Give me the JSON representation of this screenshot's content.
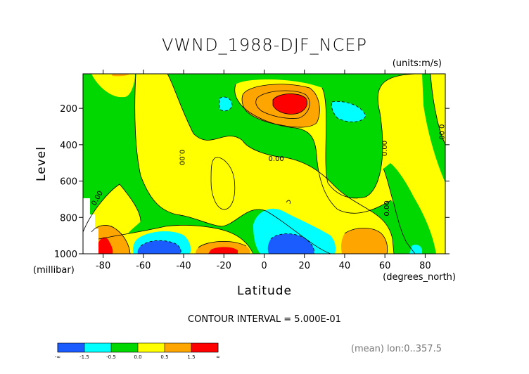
{
  "title": "VWND_1988-DJF_NCEP",
  "units": "(units:m/s)",
  "contour_interval": "CONTOUR INTERVAL = 5.000E-01",
  "footer": "(mean) lon:0..357.5",
  "colors": {
    "deep_blue": "#1a5cff",
    "cyan": "#00ffff",
    "green": "#00d800",
    "yellow": "#ffff00",
    "orange": "#ffa500",
    "red": "#ff0000"
  },
  "chart_data": {
    "type": "heatmap",
    "title": "VWND_1988-DJF_NCEP",
    "xlabel": "Latitude",
    "xunit": "(degrees_north)",
    "ylabel": "Level",
    "yunit": "(millibar)",
    "xlim": [
      -90,
      90
    ],
    "ylim": [
      1000,
      10
    ],
    "xticks": [
      -80,
      -60,
      -40,
      -20,
      0,
      20,
      40,
      60,
      80
    ],
    "yticks": [
      200,
      400,
      600,
      800,
      1000
    ],
    "contour_labels": [
      {
        "text": "0.00",
        "lat": -82,
        "level": 700
      },
      {
        "text": "0.00",
        "lat": -42,
        "level": 470
      },
      {
        "text": "0.00",
        "lat": 6,
        "level": 490
      },
      {
        "text": "0.00",
        "lat": 61,
        "level": 420
      },
      {
        "text": "0.00",
        "lat": 62,
        "level": 750
      },
      {
        "text": "0.00",
        "lat": 87,
        "level": 330
      }
    ],
    "colorbar": {
      "labels": [
        "-∞",
        "-1.5",
        "-0.5",
        "0.0",
        "0.5",
        "1.5",
        "∞"
      ],
      "colors": [
        "#1a5cff",
        "#00ffff",
        "#00d800",
        "#ffff00",
        "#ffa500",
        "#ff0000"
      ]
    },
    "cells": [
      {
        "lat": 11,
        "level": 170,
        "band": "red"
      },
      {
        "lat": 9,
        "level": 175,
        "band": "orange"
      },
      {
        "lat": -80,
        "level": 960,
        "band": "red"
      },
      {
        "lat": 10,
        "level": 950,
        "band": "deep_blue"
      },
      {
        "lat": -53,
        "level": 960,
        "band": "deep_blue"
      },
      {
        "lat": -20,
        "level": 975,
        "band": "red"
      },
      {
        "lat": 46,
        "level": 950,
        "band": "orange"
      }
    ]
  }
}
